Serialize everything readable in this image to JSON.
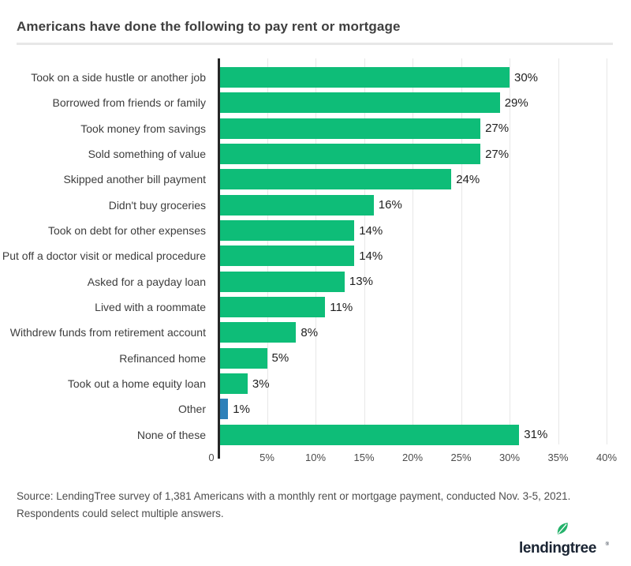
{
  "header": {
    "title": "Americans have done the following to pay rent or mortgage"
  },
  "chart_data": {
    "type": "bar",
    "orientation": "horizontal",
    "title": "Americans have done the following to pay rent or mortgage",
    "xlabel": "",
    "ylabel": "",
    "xlim": [
      0,
      40
    ],
    "grid": "vertical",
    "legend_position": "none",
    "categories": [
      "Took on a side hustle or another job",
      "Borrowed from friends or family",
      "Took money from savings",
      "Sold something of value",
      "Skipped another bill payment",
      "Didn't buy groceries",
      "Took on debt for other expenses",
      "Put off a doctor visit or medical procedure",
      "Asked for a payday loan",
      "Lived with a roommate",
      "Withdrew funds from retirement account",
      "Refinanced home",
      "Took out a home equity loan",
      "Other",
      "None of these"
    ],
    "values": [
      30,
      29,
      27,
      27,
      24,
      16,
      14,
      14,
      13,
      11,
      8,
      5,
      3,
      1,
      31
    ],
    "value_suffix": "%",
    "highlight_index": 13,
    "ticks": [
      {
        "value": 0,
        "label": "0"
      },
      {
        "value": 5,
        "label": "5%"
      },
      {
        "value": 10,
        "label": "10%"
      },
      {
        "value": 15,
        "label": "15%"
      },
      {
        "value": 20,
        "label": "20%"
      },
      {
        "value": 25,
        "label": "25%"
      },
      {
        "value": 30,
        "label": "30%"
      },
      {
        "value": 35,
        "label": "35%"
      },
      {
        "value": 40,
        "label": "40%"
      }
    ],
    "colors": {
      "bar": "#0ebd78",
      "highlight_bar": "#2e80b9",
      "axis_line": "#262626",
      "gridline": "#e7e7e7"
    }
  },
  "footer": {
    "source_lines": [
      "Source: LendingTree survey of 1,381 Americans with a monthly rent or mortgage payment, conducted Nov. 3-5, 2021.",
      "Respondents could select multiple answers."
    ],
    "logo_text": "lendingtree",
    "logo_mark": "®",
    "logo_colors": {
      "text": "#1a2433",
      "leaf": "#25b26b"
    }
  }
}
